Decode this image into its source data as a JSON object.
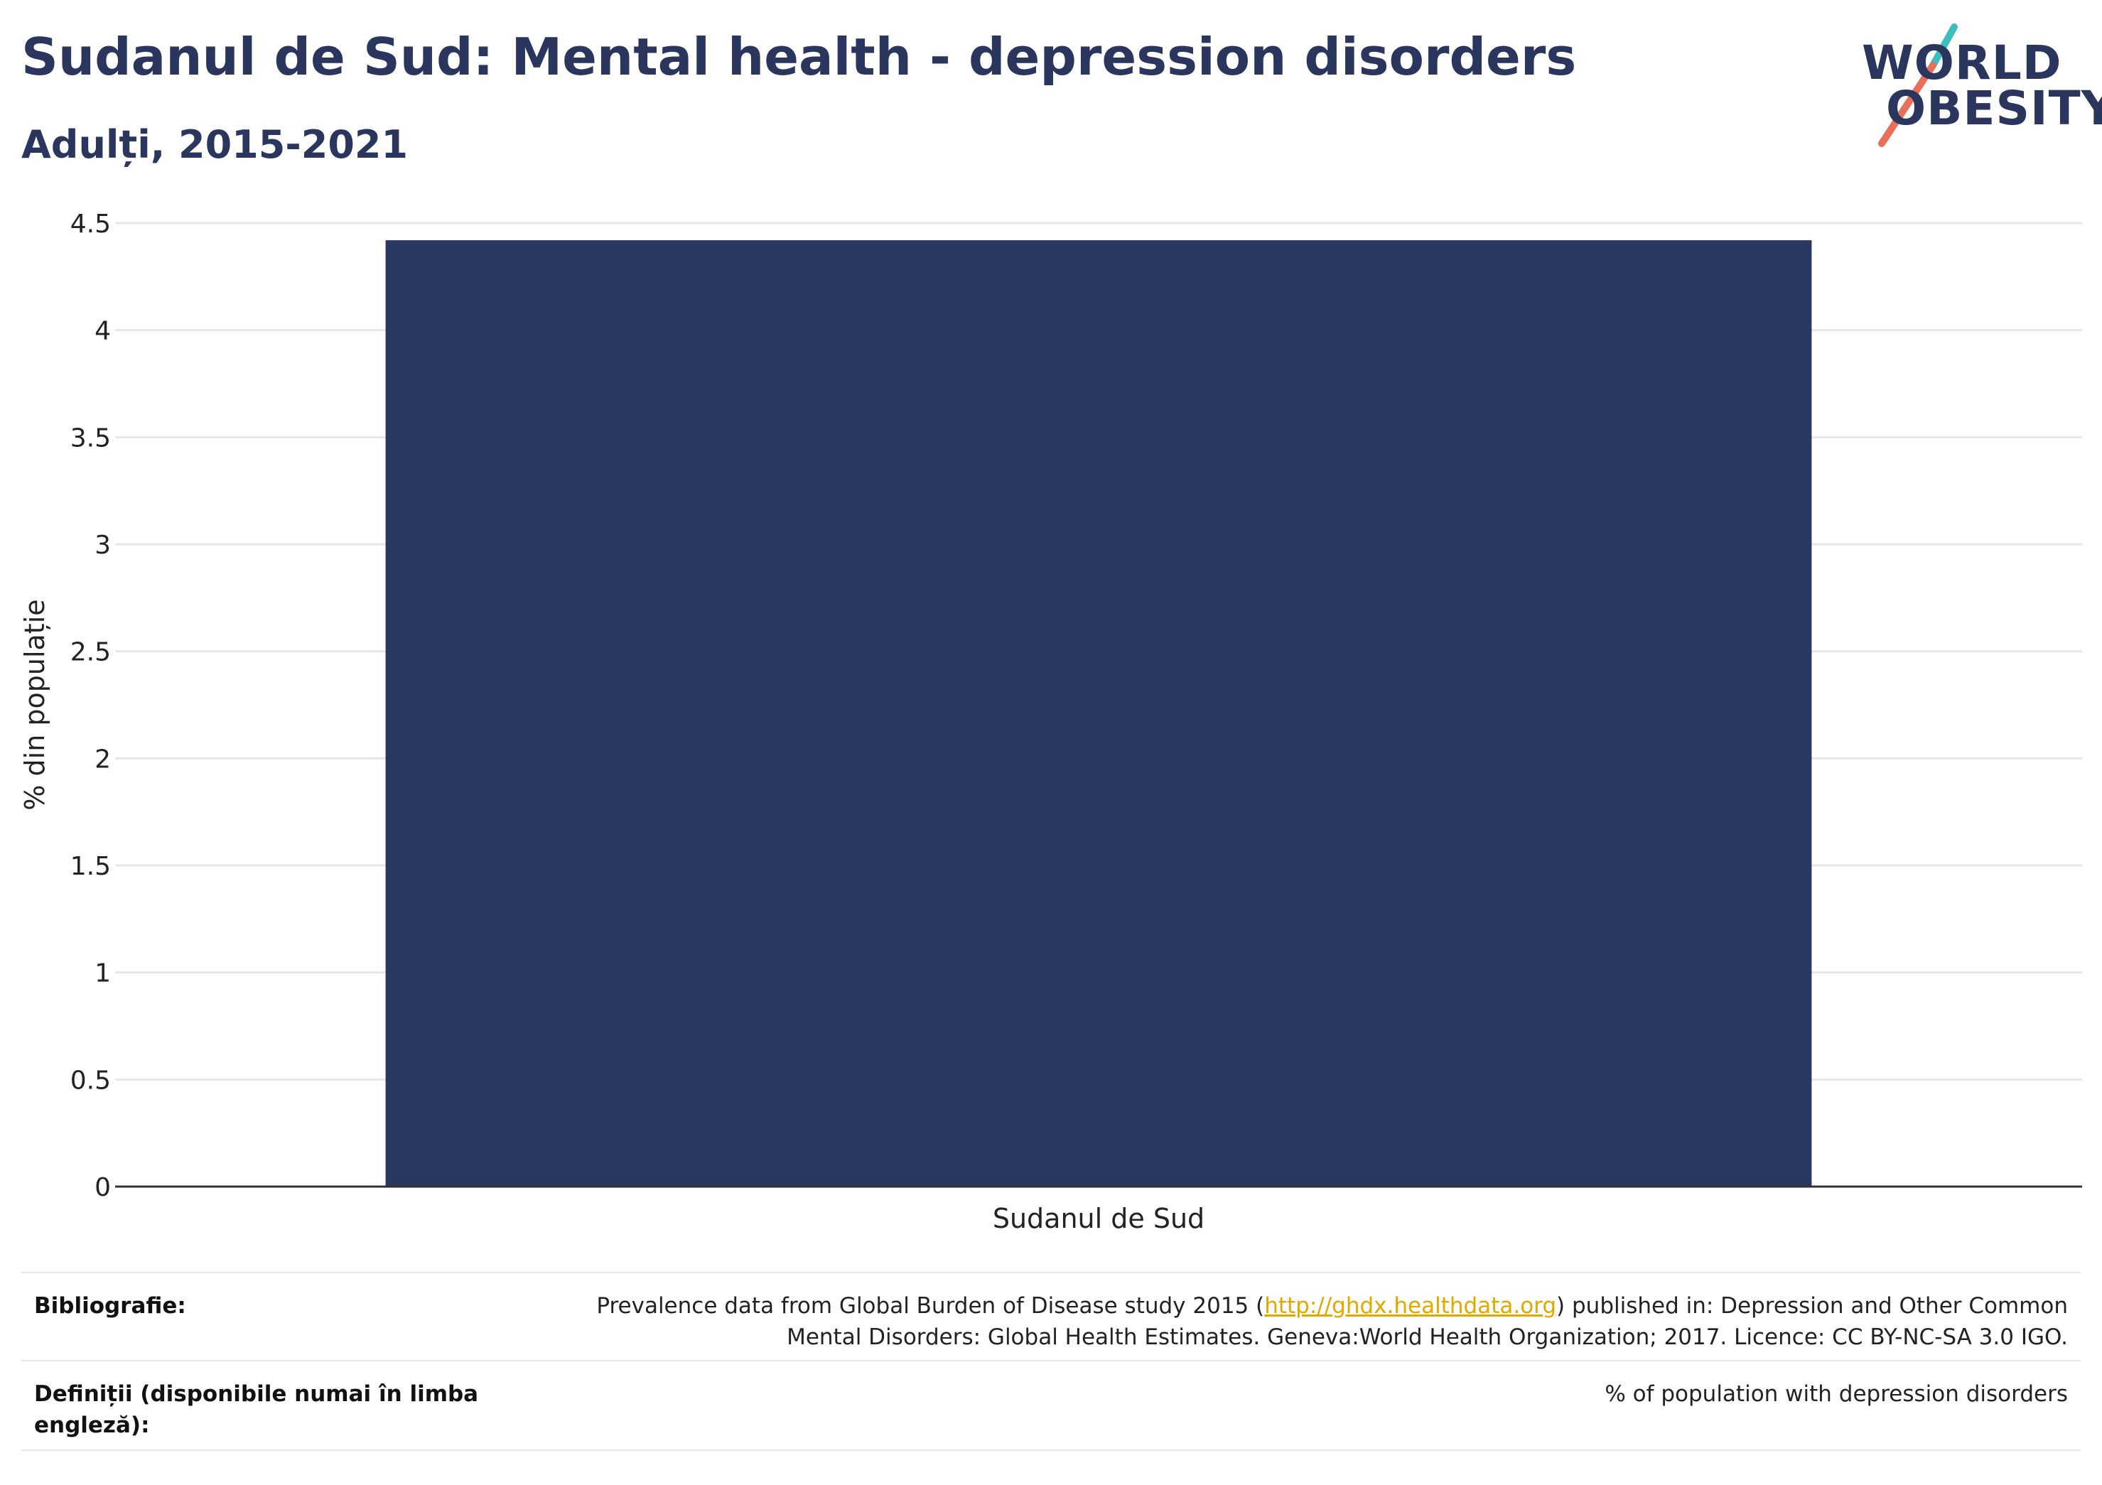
{
  "header": {
    "title": "Sudanul de Sud: Mental health - depression disorders",
    "subtitle": "Adulți, 2015-2021"
  },
  "logo": {
    "line1": "WORLD",
    "line2": "OBESITY",
    "colors": {
      "text": "#2b365f",
      "slash_top": "#3bbdc1",
      "slash_bottom": "#e8705a"
    }
  },
  "chart_data": {
    "type": "bar",
    "categories": [
      "Sudanul de Sud"
    ],
    "values": [
      4.42
    ],
    "title": "",
    "xlabel": "",
    "ylabel": "% din populație",
    "ylim": [
      0,
      4.5
    ],
    "yticks": [
      0,
      0.5,
      1,
      1.5,
      2,
      2.5,
      3,
      3.5,
      4,
      4.5
    ],
    "ytick_labels": [
      "0",
      "0.5",
      "1",
      "1.5",
      "2",
      "2.5",
      "3",
      "3.5",
      "4",
      "4.5"
    ],
    "grid": true,
    "bar_color": "#2b3763"
  },
  "footer": {
    "bibliography_label": "Bibliografie:",
    "bibliography_pre": "Prevalence data from Global Burden of Disease study 2015 (",
    "bibliography_link": "http://ghdx.healthdata.org",
    "bibliography_post": ") published in: Depression and Other Common",
    "bibliography_line2": "Mental Disorders: Global Health Estimates. Geneva:World Health Organization; 2017. Licence: CC BY-NC-SA 3.0 IGO.",
    "definitions_label": "Definiții (disponibile numai în limba engleză):",
    "definitions_text": "% of population with depression disorders"
  }
}
